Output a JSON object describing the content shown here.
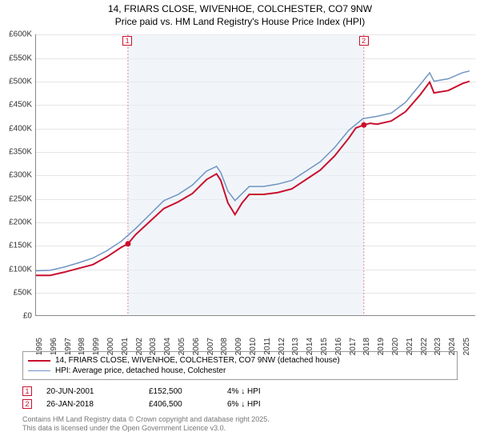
{
  "title": {
    "line1": "14, FRIARS CLOSE, WIVENHOE, COLCHESTER, CO7 9NW",
    "line2": "Price paid vs. HM Land Registry's House Price Index (HPI)"
  },
  "chart": {
    "type": "line",
    "x_domain": [
      1995,
      2025.9
    ],
    "y_domain": [
      0,
      600000
    ],
    "y_ticks": [
      0,
      50000,
      100000,
      150000,
      200000,
      250000,
      300000,
      350000,
      400000,
      450000,
      500000,
      550000,
      600000
    ],
    "y_tick_labels": [
      "£0",
      "£50K",
      "£100K",
      "£150K",
      "£200K",
      "£250K",
      "£300K",
      "£350K",
      "£400K",
      "£450K",
      "£500K",
      "£550K",
      "£600K"
    ],
    "x_ticks": [
      1995,
      1996,
      1997,
      1998,
      1999,
      2000,
      2001,
      2002,
      2003,
      2004,
      2005,
      2006,
      2007,
      2008,
      2009,
      2010,
      2011,
      2012,
      2013,
      2014,
      2015,
      2016,
      2017,
      2018,
      2019,
      2020,
      2021,
      2022,
      2023,
      2024,
      2025
    ],
    "grid_color": "#cccccc",
    "axis_color": "#888888",
    "background_shade": {
      "x_start": 2001.47,
      "x_end": 2018.07,
      "color": "#e8eef5"
    },
    "series": [
      {
        "name": "price_paid",
        "label": "14, FRIARS CLOSE, WIVENHOE, COLCHESTER, CO7 9NW (detached house)",
        "color": "#c8102e",
        "line_width": 2,
        "points": [
          [
            1995,
            85000
          ],
          [
            1996,
            85000
          ],
          [
            1997,
            92000
          ],
          [
            1998,
            100000
          ],
          [
            1999,
            108000
          ],
          [
            2000,
            125000
          ],
          [
            2001,
            145000
          ],
          [
            2001.47,
            152500
          ],
          [
            2002,
            172000
          ],
          [
            2003,
            200000
          ],
          [
            2004,
            228000
          ],
          [
            2005,
            242000
          ],
          [
            2006,
            260000
          ],
          [
            2007,
            290000
          ],
          [
            2007.7,
            302000
          ],
          [
            2008,
            288000
          ],
          [
            2008.5,
            240000
          ],
          [
            2009,
            215000
          ],
          [
            2009.5,
            240000
          ],
          [
            2010,
            258000
          ],
          [
            2011,
            258000
          ],
          [
            2012,
            262000
          ],
          [
            2013,
            270000
          ],
          [
            2014,
            290000
          ],
          [
            2015,
            310000
          ],
          [
            2016,
            340000
          ],
          [
            2017,
            378000
          ],
          [
            2017.5,
            400000
          ],
          [
            2018.07,
            406500
          ],
          [
            2018.5,
            410000
          ],
          [
            2019,
            408000
          ],
          [
            2020,
            415000
          ],
          [
            2021,
            435000
          ],
          [
            2022,
            470000
          ],
          [
            2022.7,
            498000
          ],
          [
            2023,
            475000
          ],
          [
            2024,
            480000
          ],
          [
            2025,
            495000
          ],
          [
            2025.5,
            500000
          ]
        ]
      },
      {
        "name": "hpi",
        "label": "HPI: Average price, detached house, Colchester",
        "color": "#6f94c4",
        "line_width": 1.5,
        "points": [
          [
            1995,
            95000
          ],
          [
            1996,
            96000
          ],
          [
            1997,
            103000
          ],
          [
            1998,
            112000
          ],
          [
            1999,
            122000
          ],
          [
            2000,
            138000
          ],
          [
            2001,
            158000
          ],
          [
            2002,
            185000
          ],
          [
            2003,
            215000
          ],
          [
            2004,
            245000
          ],
          [
            2005,
            258000
          ],
          [
            2006,
            278000
          ],
          [
            2007,
            308000
          ],
          [
            2007.7,
            318000
          ],
          [
            2008,
            305000
          ],
          [
            2008.5,
            265000
          ],
          [
            2009,
            245000
          ],
          [
            2009.5,
            260000
          ],
          [
            2010,
            275000
          ],
          [
            2011,
            275000
          ],
          [
            2012,
            280000
          ],
          [
            2013,
            288000
          ],
          [
            2014,
            308000
          ],
          [
            2015,
            328000
          ],
          [
            2016,
            358000
          ],
          [
            2017,
            395000
          ],
          [
            2018,
            420000
          ],
          [
            2019,
            425000
          ],
          [
            2020,
            432000
          ],
          [
            2021,
            455000
          ],
          [
            2022,
            492000
          ],
          [
            2022.7,
            518000
          ],
          [
            2023,
            500000
          ],
          [
            2024,
            505000
          ],
          [
            2025,
            518000
          ],
          [
            2025.5,
            522000
          ]
        ]
      }
    ],
    "markers": [
      {
        "id": "1",
        "x": 2001.47,
        "y": 152500
      },
      {
        "id": "2",
        "x": 2018.07,
        "y": 406500
      }
    ]
  },
  "legend": {
    "series0": "14, FRIARS CLOSE, WIVENHOE, COLCHESTER, CO7 9NW (detached house)",
    "series1": "HPI: Average price, detached house, Colchester"
  },
  "transactions": [
    {
      "id": "1",
      "date": "20-JUN-2001",
      "price": "£152,500",
      "hpi": "4% ↓ HPI"
    },
    {
      "id": "2",
      "date": "26-JAN-2018",
      "price": "£406,500",
      "hpi": "6% ↓ HPI"
    }
  ],
  "attribution": {
    "line1": "Contains HM Land Registry data © Crown copyright and database right 2025.",
    "line2": "This data is licensed under the Open Government Licence v3.0."
  },
  "colors": {
    "price_paid": "#c8102e",
    "hpi": "#6f94c4",
    "grid": "#cccccc",
    "shade": "#e8eef5"
  }
}
